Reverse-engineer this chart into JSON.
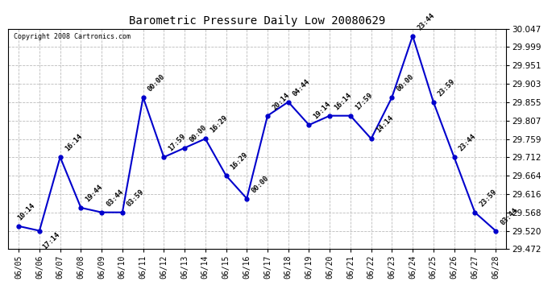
{
  "title": "Barometric Pressure Daily Low 20080629",
  "copyright": "Copyright 2008 Cartronics.com",
  "background_color": "#ffffff",
  "line_color": "#0000cc",
  "marker_color": "#0000cc",
  "grid_color": "#bbbbbb",
  "ylim": [
    29.472,
    30.047
  ],
  "yticks": [
    29.472,
    29.52,
    29.568,
    29.616,
    29.664,
    29.712,
    29.759,
    29.807,
    29.855,
    29.903,
    29.951,
    29.999,
    30.047
  ],
  "dates": [
    "06/05",
    "06/06",
    "06/07",
    "06/08",
    "06/09",
    "06/10",
    "06/11",
    "06/12",
    "06/13",
    "06/14",
    "06/15",
    "06/16",
    "06/17",
    "06/18",
    "06/19",
    "06/20",
    "06/21",
    "06/22",
    "06/23",
    "06/24",
    "06/25",
    "06/26",
    "06/27",
    "06/28"
  ],
  "values": [
    29.532,
    29.52,
    29.712,
    29.58,
    29.568,
    29.568,
    29.868,
    29.712,
    29.736,
    29.76,
    29.664,
    29.604,
    29.82,
    29.856,
    29.796,
    29.82,
    29.82,
    29.76,
    29.868,
    30.028,
    29.856,
    29.712,
    29.568,
    29.52
  ],
  "annotations": [
    {
      "idx": 0,
      "time": "10:14"
    },
    {
      "idx": 1,
      "time": "17:14"
    },
    {
      "idx": 2,
      "time": "16:14"
    },
    {
      "idx": 3,
      "time": "19:44"
    },
    {
      "idx": 4,
      "time": "03:44"
    },
    {
      "idx": 5,
      "time": "03:59"
    },
    {
      "idx": 6,
      "time": "00:00"
    },
    {
      "idx": 7,
      "time": "17:59"
    },
    {
      "idx": 8,
      "time": "00:00"
    },
    {
      "idx": 9,
      "time": "16:29"
    },
    {
      "idx": 10,
      "time": "16:29"
    },
    {
      "idx": 11,
      "time": "00:00"
    },
    {
      "idx": 12,
      "time": "20:14"
    },
    {
      "idx": 13,
      "time": "04:44"
    },
    {
      "idx": 14,
      "time": "19:14"
    },
    {
      "idx": 15,
      "time": "16:14"
    },
    {
      "idx": 16,
      "time": "17:59"
    },
    {
      "idx": 17,
      "time": "14:14"
    },
    {
      "idx": 18,
      "time": "00:00"
    },
    {
      "idx": 19,
      "time": "23:44"
    },
    {
      "idx": 20,
      "time": "23:59"
    },
    {
      "idx": 21,
      "time": "23:44"
    },
    {
      "idx": 22,
      "time": "23:59"
    },
    {
      "idx": 23,
      "time": "03:44"
    }
  ]
}
